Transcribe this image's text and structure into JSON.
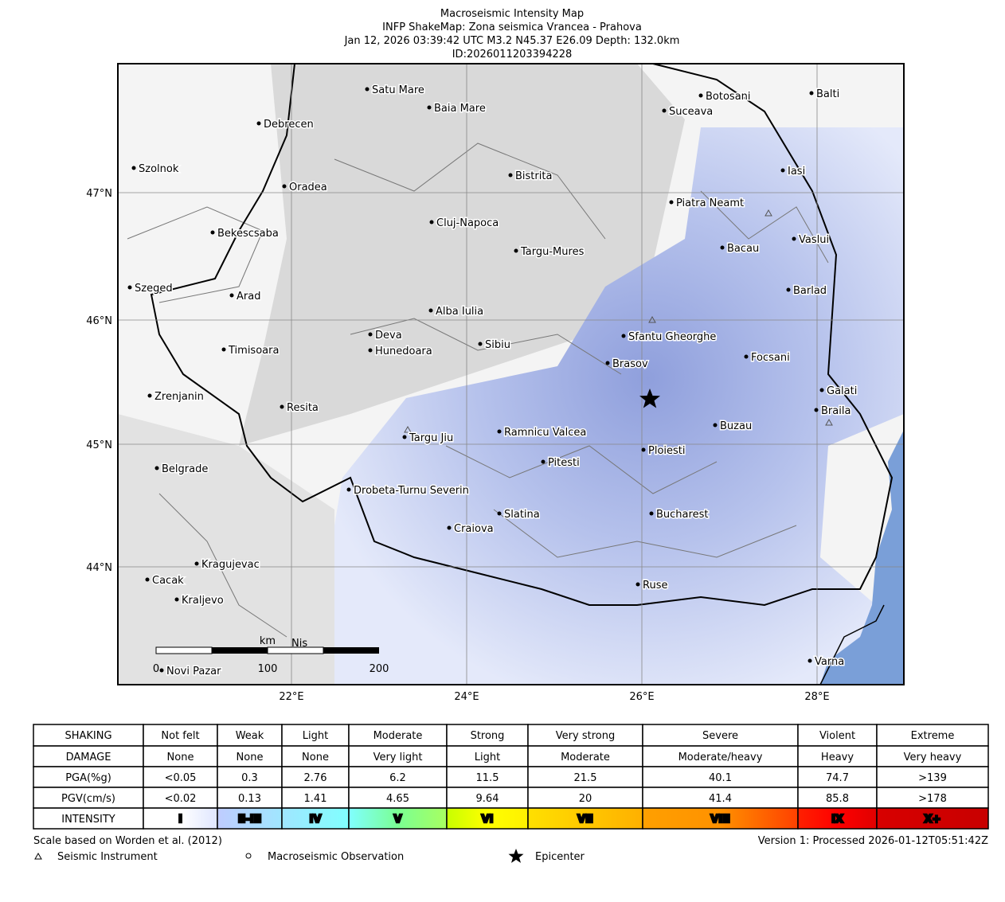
{
  "title": {
    "lines": [
      "Macroseismic Intensity Map",
      "INFP ShakeMap: Zona seismica Vrancea - Prahova",
      "Jan 12, 2026 03:39:42 UTC M3.2 N45.37 E26.09 Depth: 132.0km",
      "ID:2026011203394228"
    ]
  },
  "map": {
    "lat_labels": [
      "47°N",
      "46°N",
      "45°N",
      "44°N"
    ],
    "lon_labels": [
      "22°E",
      "24°E",
      "26°E",
      "28°E"
    ],
    "cities": [
      "Satu Mare",
      "Baia Mare",
      "Debrecen",
      "Botosani",
      "Balti",
      "Suceava",
      "Szolnok",
      "Oradea",
      "Bistrita",
      "Iasi",
      "Piatra Neamt",
      "Bekescsaba",
      "Cluj-Napoca",
      "Vaslui",
      "Targu-Mures",
      "Bacau",
      "Szeged",
      "Arad",
      "Barlad",
      "Alba Iulia",
      "Deva",
      "Sfantu Gheorghe",
      "Hunedoara",
      "Sibiu",
      "Timisoara",
      "Focsani",
      "Brasov",
      "Galati",
      "Zrenjanin",
      "Resita",
      "Braila",
      "Buzau",
      "Ramnicu Valcea",
      "Targu Jiu",
      "Ploiesti",
      "Pitesti",
      "Belgrade",
      "Drobeta-Turnu Severin",
      "Slatina",
      "Bucharest",
      "Craiova",
      "Kragujevac",
      "Cacak",
      "Kraljevo",
      "Ruse",
      "Varna",
      "Novi Pazar"
    ],
    "hidden_label": "Nis",
    "scale_bar": {
      "unit": "km",
      "ticks": [
        "0",
        "100",
        "200"
      ]
    }
  },
  "table": {
    "rows": [
      [
        "SHAKING",
        "Not felt",
        "Weak",
        "Light",
        "Moderate",
        "Strong",
        "Very strong",
        "Severe",
        "Violent",
        "Extreme"
      ],
      [
        "DAMAGE",
        "None",
        "None",
        "None",
        "Very light",
        "Light",
        "Moderate",
        "Moderate/heavy",
        "Heavy",
        "Very heavy"
      ],
      [
        "PGA(%g)",
        "<0.05",
        "0.3",
        "2.76",
        "6.2",
        "11.5",
        "21.5",
        "40.1",
        "74.7",
        ">139"
      ],
      [
        "PGV(cm/s)",
        "<0.02",
        "0.13",
        "1.41",
        "4.65",
        "9.64",
        "20",
        "41.4",
        "85.8",
        ">178"
      ],
      [
        "INTENSITY",
        "I",
        "II-III",
        "IV",
        "V",
        "VI",
        "VII",
        "VIII",
        "IX",
        "X+"
      ]
    ]
  },
  "footer": {
    "note": "Scale based on Worden et al. (2012)",
    "version": "Version 1: Processed 2026-01-12T05:51:42Z"
  },
  "legend": {
    "instrument": "Seismic Instrument",
    "observation": "Macroseismic Observation",
    "epicenter": "Epicenter"
  }
}
